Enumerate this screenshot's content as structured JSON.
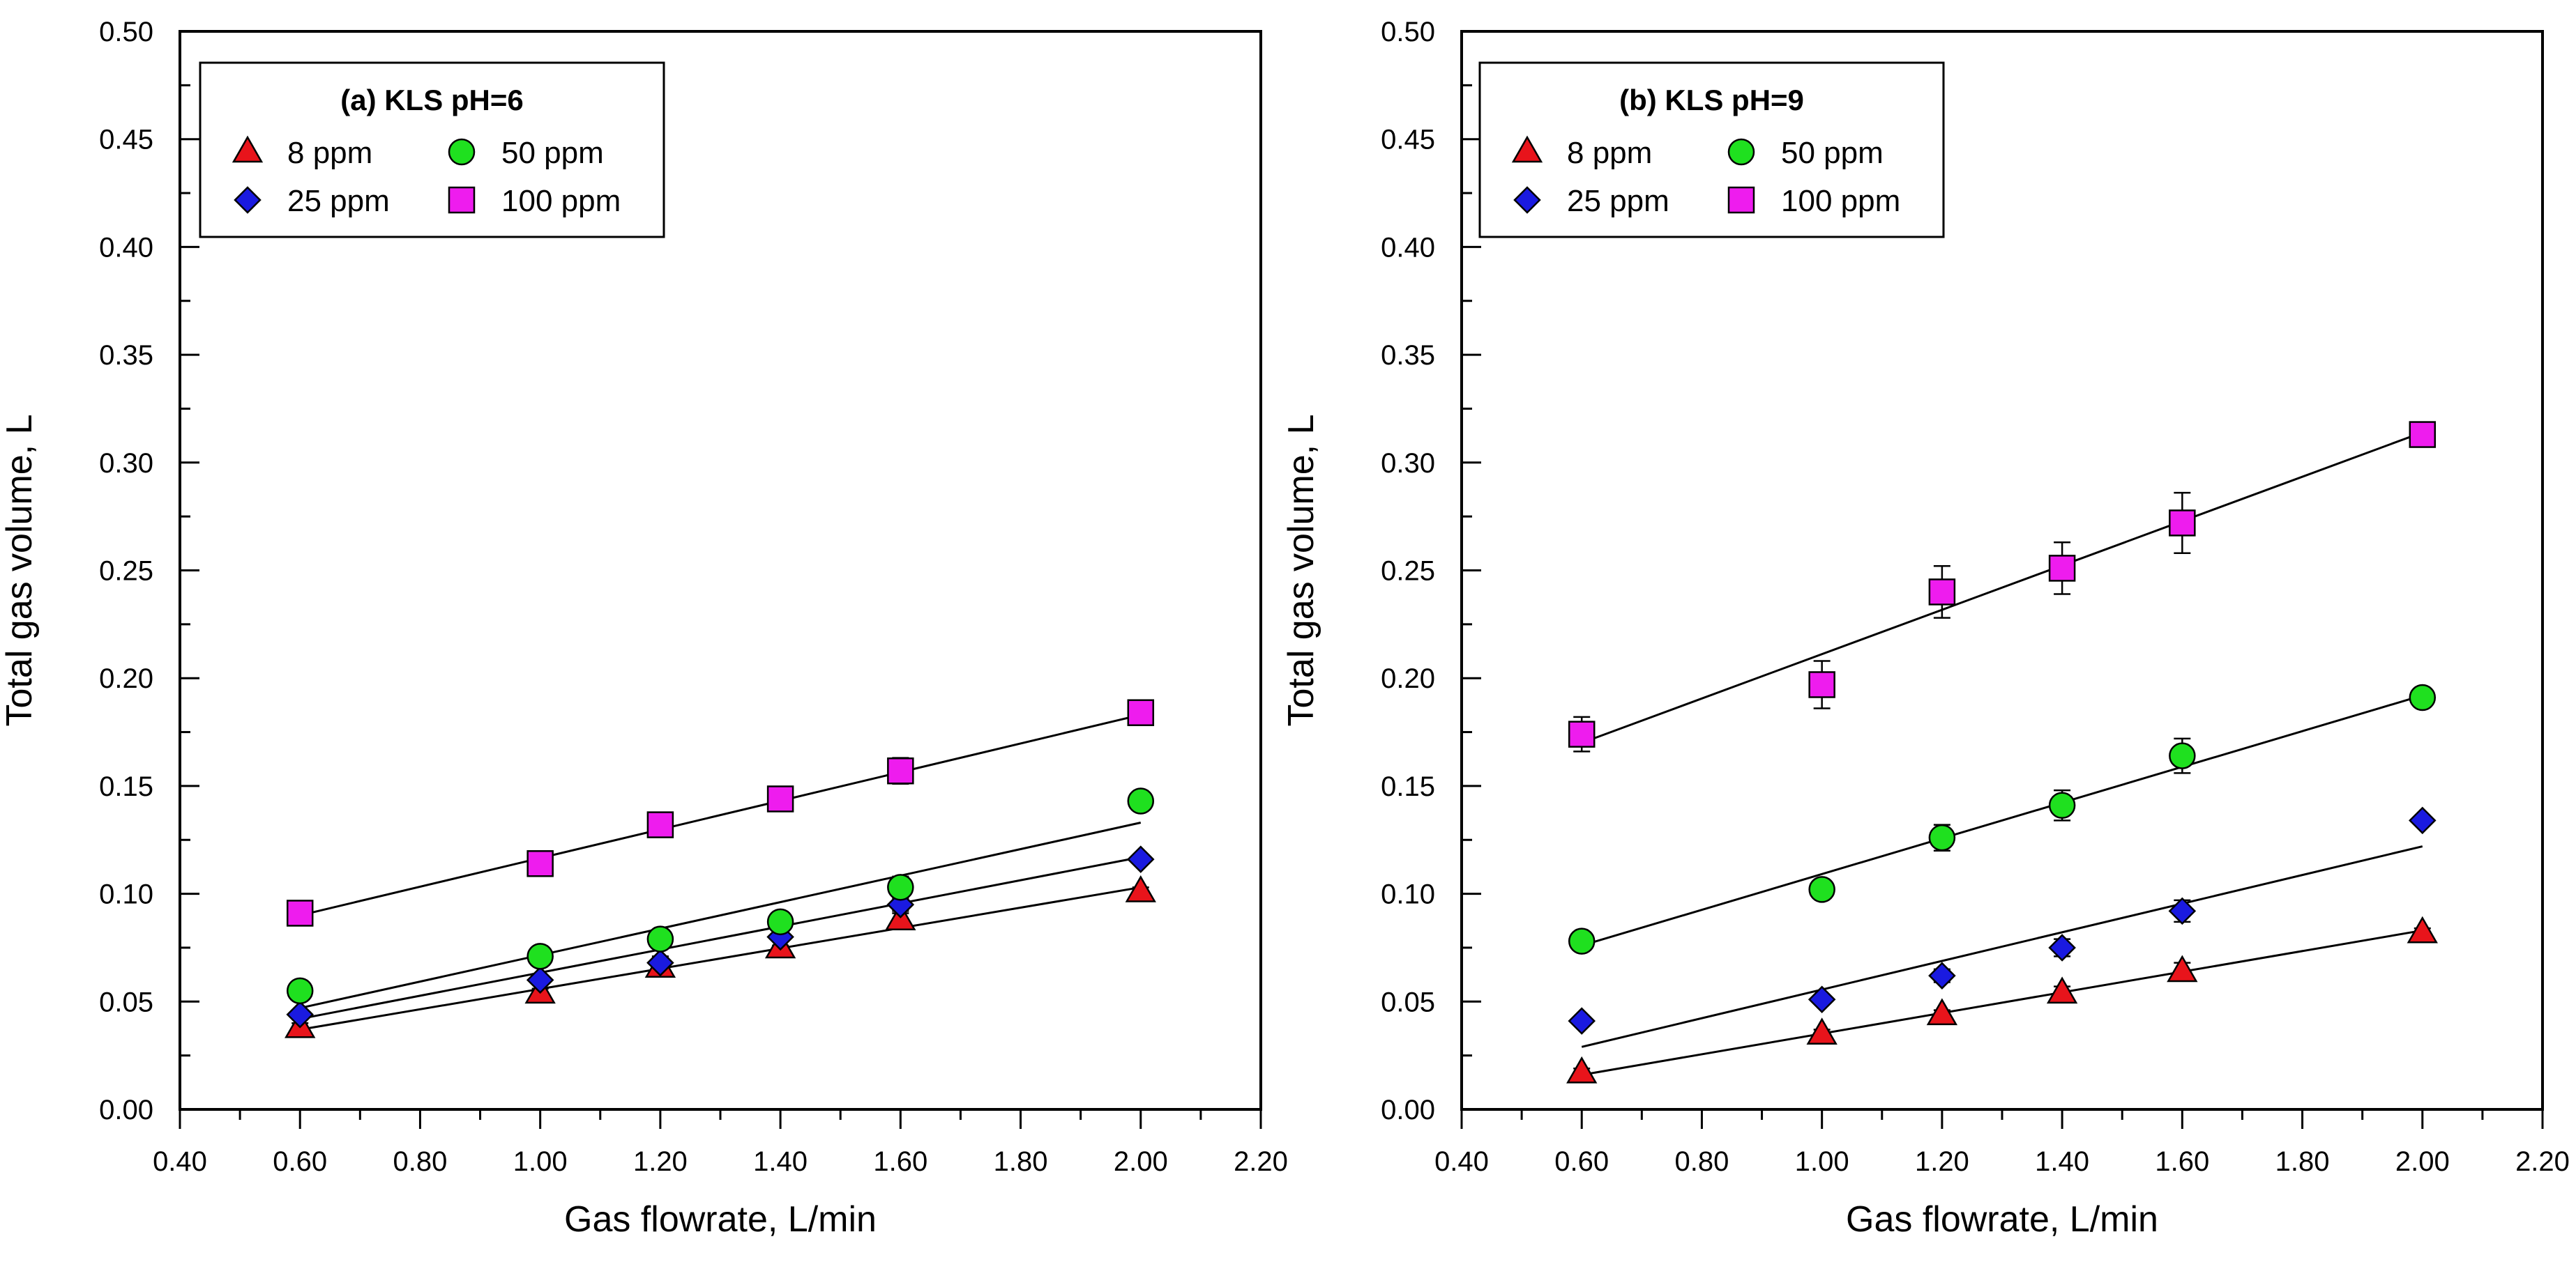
{
  "chart_data": [
    {
      "type": "scatter",
      "title": "(a) KLS pH=6",
      "xlabel": "Gas flowrate, L/min",
      "ylabel": "Total gas volume, L",
      "xlim": [
        0.4,
        2.2
      ],
      "ylim": [
        0.0,
        0.5
      ],
      "xticks": [
        0.4,
        0.6,
        0.8,
        1.0,
        1.2,
        1.4,
        1.6,
        1.8,
        2.0,
        2.2
      ],
      "yticks": [
        0.0,
        0.05,
        0.1,
        0.15,
        0.2,
        0.25,
        0.3,
        0.35,
        0.4,
        0.45,
        0.5
      ],
      "xtick_labels": [
        "0.40",
        "0.60",
        "0.80",
        "1.00",
        "1.20",
        "1.40",
        "1.60",
        "1.80",
        "2.00",
        "2.20"
      ],
      "ytick_labels": [
        "0.00",
        "0.05",
        "0.10",
        "0.15",
        "0.20",
        "0.25",
        "0.30",
        "0.35",
        "0.40",
        "0.45",
        "0.50"
      ],
      "legend_position": "top-left",
      "legend_entries": [
        "8 ppm",
        "25 ppm",
        "50 ppm",
        "100 ppm"
      ],
      "x": [
        0.6,
        1.0,
        1.2,
        1.4,
        1.6,
        2.0
      ],
      "series": [
        {
          "name": "8 ppm",
          "marker": "triangle",
          "color": "#e8141b",
          "values": [
            0.038,
            0.054,
            0.066,
            0.075,
            0.088,
            0.101
          ],
          "errors": [
            0.002,
            0.002,
            0.003,
            0.003,
            0.004,
            0.002
          ],
          "fit": [
            0.037,
            0.103
          ]
        },
        {
          "name": "25 ppm",
          "marker": "diamond",
          "color": "#1a1ae0",
          "values": [
            0.044,
            0.06,
            0.068,
            0.08,
            0.095,
            0.116
          ],
          "errors": [
            0.002,
            0.002,
            0.003,
            0.004,
            0.004,
            0.002
          ],
          "fit": [
            0.042,
            0.117
          ]
        },
        {
          "name": "50 ppm",
          "marker": "circle",
          "color": "#1fe01f",
          "values": [
            0.055,
            0.071,
            0.079,
            0.087,
            0.103,
            0.143
          ],
          "errors": [
            0.002,
            0.002,
            0.003,
            0.003,
            0.005,
            0.002
          ],
          "fit": [
            0.047,
            0.133
          ]
        },
        {
          "name": "100 ppm",
          "marker": "square",
          "color": "#ee1cee",
          "values": [
            0.091,
            0.114,
            0.132,
            0.144,
            0.157,
            0.184
          ],
          "errors": [
            0.002,
            0.003,
            0.003,
            0.003,
            0.006,
            0.002
          ],
          "fit": [
            0.09,
            0.183
          ]
        }
      ]
    },
    {
      "type": "scatter",
      "title": "(b) KLS pH=9",
      "xlabel": "Gas flowrate, L/min",
      "ylabel": "Total gas volume, L",
      "xlim": [
        0.4,
        2.2
      ],
      "ylim": [
        0.0,
        0.5
      ],
      "xticks": [
        0.4,
        0.6,
        0.8,
        1.0,
        1.2,
        1.4,
        1.6,
        1.8,
        2.0,
        2.2
      ],
      "yticks": [
        0.0,
        0.05,
        0.1,
        0.15,
        0.2,
        0.25,
        0.3,
        0.35,
        0.4,
        0.45,
        0.5
      ],
      "xtick_labels": [
        "0.40",
        "0.60",
        "0.80",
        "1.00",
        "1.20",
        "1.40",
        "1.60",
        "1.80",
        "2.00",
        "2.20"
      ],
      "ytick_labels": [
        "0.00",
        "0.05",
        "0.10",
        "0.15",
        "0.20",
        "0.25",
        "0.30",
        "0.35",
        "0.40",
        "0.45",
        "0.50"
      ],
      "legend_position": "top-left",
      "legend_entries": [
        "8 ppm",
        "25 ppm",
        "50 ppm",
        "100 ppm"
      ],
      "x": [
        0.6,
        1.0,
        1.2,
        1.4,
        1.6,
        2.0
      ],
      "series": [
        {
          "name": "8 ppm",
          "marker": "triangle",
          "color": "#e8141b",
          "values": [
            0.017,
            0.035,
            0.044,
            0.054,
            0.064,
            0.082
          ],
          "errors": [
            0.002,
            0.002,
            0.002,
            0.003,
            0.004,
            0.002
          ],
          "fit": [
            0.016,
            0.083
          ]
        },
        {
          "name": "25 ppm",
          "marker": "diamond",
          "color": "#1a1ae0",
          "values": [
            0.041,
            0.051,
            0.062,
            0.075,
            0.092,
            0.134
          ],
          "errors": [
            0.002,
            0.002,
            0.003,
            0.004,
            0.005,
            0.002
          ],
          "fit": [
            0.029,
            0.122
          ]
        },
        {
          "name": "50 ppm",
          "marker": "circle",
          "color": "#1fe01f",
          "values": [
            0.078,
            0.102,
            0.126,
            0.141,
            0.164,
            0.191
          ],
          "errors": [
            0.002,
            0.003,
            0.006,
            0.007,
            0.008,
            0.002
          ],
          "fit": [
            0.076,
            0.192
          ]
        },
        {
          "name": "100 ppm",
          "marker": "square",
          "color": "#ee1cee",
          "values": [
            0.174,
            0.197,
            0.24,
            0.251,
            0.272,
            0.313
          ],
          "errors": [
            0.008,
            0.011,
            0.012,
            0.012,
            0.014,
            0.002
          ],
          "fit": [
            0.17,
            0.314
          ]
        }
      ]
    }
  ]
}
